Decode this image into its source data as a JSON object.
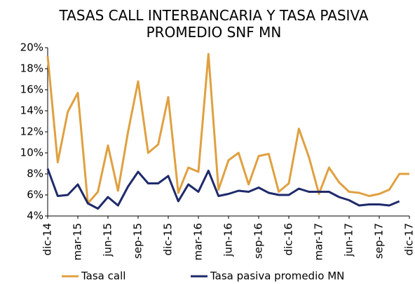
{
  "chart_data": {
    "type": "line",
    "title": "TASAS CALL INTERBANCARIA Y TASA PASIVA PROMEDIO SNF MN",
    "categories": [
      "dic-14",
      null,
      null,
      "mar-15",
      null,
      null,
      "jun-15",
      null,
      null,
      "sep-15",
      null,
      null,
      "dic-15",
      null,
      null,
      "mar-16",
      null,
      null,
      "jun-16",
      null,
      null,
      "sep-16",
      null,
      null,
      "dic-16",
      null,
      null,
      "mar-17",
      null,
      null,
      "jun-17",
      null,
      null,
      "sep-17",
      null,
      null,
      "dic-17"
    ],
    "series": [
      {
        "name": "Tasa call",
        "color": "#E0A040",
        "values": [
          19.2,
          9.1,
          13.9,
          15.7,
          5.2,
          6.3,
          10.7,
          6.4,
          12.0,
          16.8,
          10.0,
          10.8,
          15.3,
          6.2,
          8.6,
          8.2,
          19.4,
          6.5,
          9.3,
          10.0,
          7.0,
          9.7,
          9.9,
          6.3,
          7.1,
          12.3,
          9.6,
          6.1,
          8.6,
          7.2,
          6.3,
          6.2,
          5.9,
          6.1,
          6.5,
          8.0,
          8.0
        ]
      },
      {
        "name": "Tasa pasiva promedio MN",
        "color": "#1F2A6B",
        "values": [
          8.5,
          5.9,
          6.0,
          7.0,
          5.2,
          4.7,
          5.8,
          5.0,
          6.8,
          8.2,
          7.1,
          7.1,
          7.8,
          5.4,
          7.0,
          6.3,
          8.3,
          5.9,
          6.1,
          6.4,
          6.3,
          6.7,
          6.2,
          6.0,
          6.0,
          6.6,
          6.3,
          6.3,
          6.3,
          5.8,
          5.5,
          5.0,
          5.1,
          5.1,
          5.0,
          5.4,
          null
        ]
      }
    ],
    "ylim": [
      4,
      20
    ],
    "yticks": [
      {
        "value": 4,
        "label": "4%"
      },
      {
        "value": 6,
        "label": "6%"
      },
      {
        "value": 8,
        "label": "8%"
      },
      {
        "value": 10,
        "label": "10%"
      },
      {
        "value": 12,
        "label": "12%"
      },
      {
        "value": 14,
        "label": "14%"
      },
      {
        "value": 16,
        "label": "16%"
      },
      {
        "value": 18,
        "label": "18%"
      },
      {
        "value": 20,
        "label": "20%"
      }
    ],
    "grid": false,
    "legend": "bottom"
  }
}
